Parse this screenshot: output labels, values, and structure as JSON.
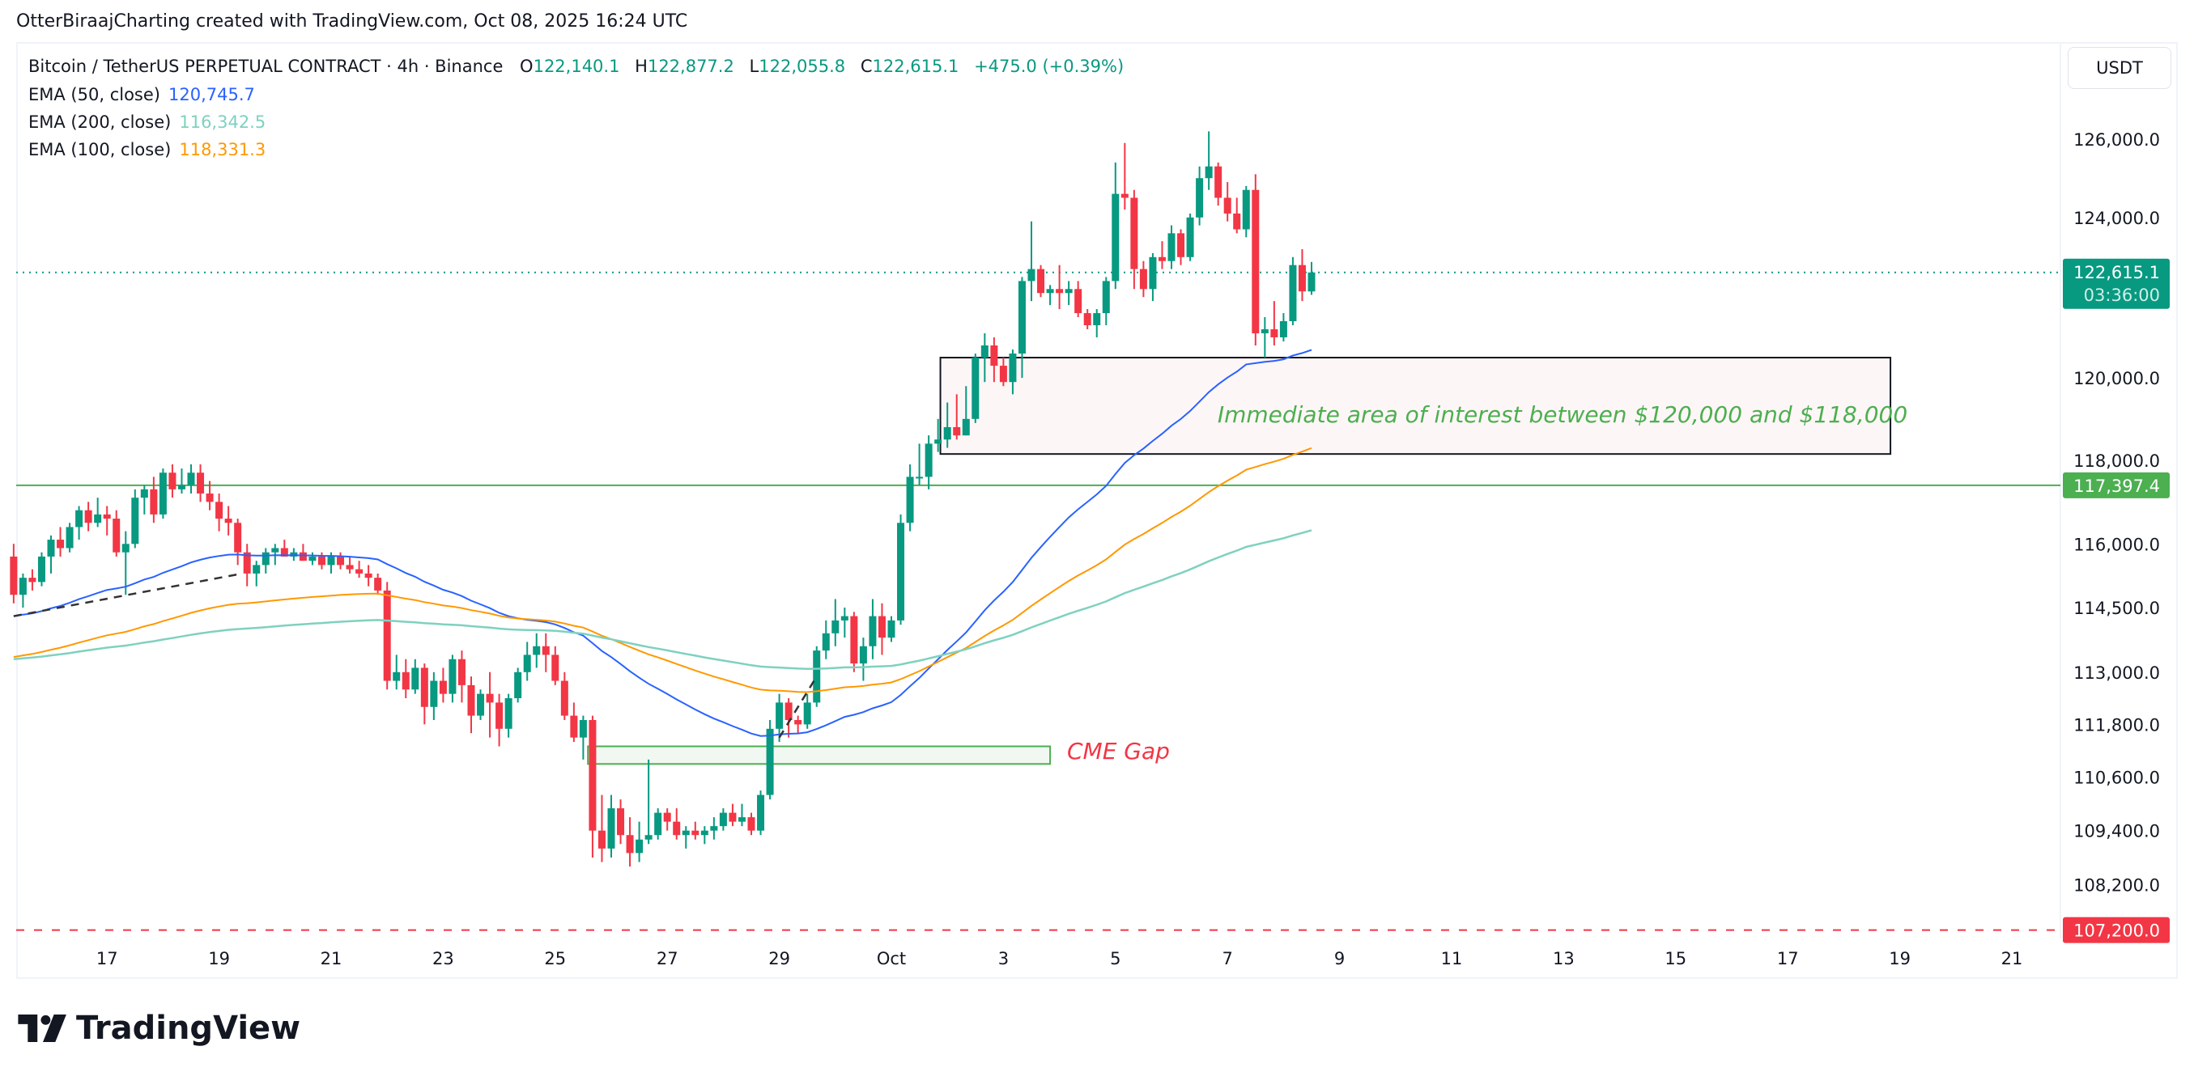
{
  "credit": "OtterBiraajCharting created with TradingView.com, Oct 08, 2025 16:24 UTC",
  "legend": {
    "symbol": "Bitcoin / TetherUS PERPETUAL CONTRACT · 4h · Binance",
    "o_label": "O",
    "o": "122,140.1",
    "h_label": "H",
    "h": "122,877.2",
    "l_label": "L",
    "l": "122,055.8",
    "c_label": "C",
    "c": "122,615.1",
    "change": "+475.0 (+0.39%)",
    "ema50_label": "EMA (50, close)",
    "ema50_value": "120,745.7",
    "ema200_label": "EMA (200, close)",
    "ema200_value": "116,342.5",
    "ema100_label": "EMA (100, close)",
    "ema100_value": "118,331.3"
  },
  "currency_button": "USDT",
  "logo_text": "TradingView",
  "colors": {
    "up": "#089981",
    "down": "#f23645",
    "ema50": "#2962ff",
    "ema100": "#ff9800",
    "ema200": "#7fd1bf",
    "support_line": "#4caf50",
    "target_line": "#f23645",
    "text_green": "#4caf50"
  },
  "chart_data": {
    "type": "candlestick",
    "title": "",
    "scale": "log",
    "grid": false,
    "ylim": [
      106900,
      126900
    ],
    "xlim": [
      "2025-09-15 06:00",
      "2025-10-22 12:00"
    ],
    "interval_hours": 4,
    "start": "2025-09-15 08:00",
    "x_ticks": [
      {
        "date": "2025-09-17",
        "label": "17"
      },
      {
        "date": "2025-09-19",
        "label": "19"
      },
      {
        "date": "2025-09-21",
        "label": "21"
      },
      {
        "date": "2025-09-23",
        "label": "23"
      },
      {
        "date": "2025-09-25",
        "label": "25"
      },
      {
        "date": "2025-09-27",
        "label": "27"
      },
      {
        "date": "2025-09-29",
        "label": "29"
      },
      {
        "date": "2025-10-01",
        "label": "Oct"
      },
      {
        "date": "2025-10-03",
        "label": "3"
      },
      {
        "date": "2025-10-05",
        "label": "5"
      },
      {
        "date": "2025-10-07",
        "label": "7"
      },
      {
        "date": "2025-10-09",
        "label": "9"
      },
      {
        "date": "2025-10-11",
        "label": "11"
      },
      {
        "date": "2025-10-13",
        "label": "13"
      },
      {
        "date": "2025-10-15",
        "label": "15"
      },
      {
        "date": "2025-10-17",
        "label": "17"
      },
      {
        "date": "2025-10-19",
        "label": "19"
      },
      {
        "date": "2025-10-21",
        "label": "21"
      }
    ],
    "y_ticks": [
      {
        "value": 126000,
        "label": "126,000.0"
      },
      {
        "value": 124000,
        "label": "124,000.0"
      },
      {
        "value": 120000,
        "label": "120,000.0"
      },
      {
        "value": 118000,
        "label": "118,000.0"
      },
      {
        "value": 116000,
        "label": "116,000.0"
      },
      {
        "value": 114500,
        "label": "114,500.0"
      },
      {
        "value": 113000,
        "label": "113,000.0"
      },
      {
        "value": 111800,
        "label": "111,800.0"
      },
      {
        "value": 110600,
        "label": "110,600.0"
      },
      {
        "value": 109400,
        "label": "109,400.0"
      },
      {
        "value": 108200,
        "label": "108,200.0"
      }
    ],
    "price_labels": [
      {
        "value": 122615.1,
        "label": "122,615.1",
        "sub": "03:36:00",
        "kind": "last"
      },
      {
        "value": 117397.4,
        "label": "117,397.4",
        "kind": "support"
      },
      {
        "value": 107200,
        "label": "107,200.0",
        "kind": "target"
      }
    ],
    "candles": [
      [
        115700,
        116000,
        114600,
        114800
      ],
      [
        114800,
        115300,
        114500,
        115200
      ],
      [
        115200,
        115400,
        114900,
        115100
      ],
      [
        115100,
        115800,
        115000,
        115700
      ],
      [
        115700,
        116200,
        115300,
        116100
      ],
      [
        116100,
        116400,
        115700,
        115900
      ],
      [
        115900,
        116500,
        115800,
        116400
      ],
      [
        116400,
        116900,
        116100,
        116800
      ],
      [
        116800,
        117000,
        116300,
        116500
      ],
      [
        116500,
        117100,
        116400,
        116700
      ],
      [
        116700,
        116900,
        116200,
        116600
      ],
      [
        116600,
        116800,
        115700,
        115800
      ],
      [
        115800,
        116300,
        114800,
        116000
      ],
      [
        116000,
        117300,
        115900,
        117100
      ],
      [
        117100,
        117400,
        116700,
        117300
      ],
      [
        117300,
        117600,
        116500,
        116700
      ],
      [
        116700,
        117800,
        116600,
        117700
      ],
      [
        117700,
        117900,
        117100,
        117300
      ],
      [
        117300,
        117800,
        117200,
        117400
      ],
      [
        117400,
        117900,
        117200,
        117700
      ],
      [
        117700,
        117900,
        117000,
        117200
      ],
      [
        117200,
        117500,
        116800,
        117000
      ],
      [
        117000,
        117200,
        116300,
        116600
      ],
      [
        116600,
        116900,
        116200,
        116500
      ],
      [
        116500,
        116600,
        115500,
        115800
      ],
      [
        115800,
        116000,
        115000,
        115300
      ],
      [
        115300,
        115600,
        115000,
        115500
      ],
      [
        115500,
        115900,
        115300,
        115800
      ],
      [
        115800,
        116000,
        115500,
        115900
      ],
      [
        115900,
        116100,
        115700,
        115700
      ],
      [
        115700,
        115900,
        115600,
        115800
      ],
      [
        115800,
        116000,
        115600,
        115600
      ],
      [
        115600,
        115800,
        115500,
        115700
      ],
      [
        115700,
        115800,
        115400,
        115500
      ],
      [
        115500,
        115800,
        115300,
        115700
      ],
      [
        115700,
        115800,
        115400,
        115500
      ],
      [
        115500,
        115700,
        115300,
        115400
      ],
      [
        115400,
        115600,
        115200,
        115300
      ],
      [
        115300,
        115500,
        115000,
        115200
      ],
      [
        115200,
        115300,
        114800,
        114900
      ],
      [
        114900,
        115100,
        112600,
        112800
      ],
      [
        112800,
        113400,
        112600,
        113000
      ],
      [
        113000,
        113300,
        112400,
        112600
      ],
      [
        112600,
        113300,
        112500,
        113100
      ],
      [
        113100,
        113200,
        111800,
        112200
      ],
      [
        112200,
        113000,
        111900,
        112800
      ],
      [
        112800,
        113100,
        112300,
        112500
      ],
      [
        112500,
        113400,
        112300,
        113300
      ],
      [
        113300,
        113500,
        112300,
        112700
      ],
      [
        112700,
        112900,
        111600,
        112000
      ],
      [
        112000,
        112600,
        111900,
        112500
      ],
      [
        112500,
        113000,
        111500,
        112300
      ],
      [
        112300,
        112500,
        111300,
        111700
      ],
      [
        111700,
        112500,
        111500,
        112400
      ],
      [
        112400,
        113100,
        112300,
        113000
      ],
      [
        113000,
        113700,
        112800,
        113400
      ],
      [
        113400,
        113900,
        113100,
        113600
      ],
      [
        113600,
        113900,
        113000,
        113400
      ],
      [
        113400,
        113600,
        112700,
        112800
      ],
      [
        112800,
        113000,
        111900,
        112000
      ],
      [
        112000,
        112300,
        111400,
        111500
      ],
      [
        111500,
        112000,
        111000,
        111900
      ],
      [
        111900,
        112000,
        108800,
        109400
      ],
      [
        109400,
        110200,
        108700,
        109000
      ],
      [
        109000,
        110200,
        108800,
        109900
      ],
      [
        109900,
        110100,
        109100,
        109300
      ],
      [
        109300,
        109700,
        108600,
        108900
      ],
      [
        108900,
        109600,
        108700,
        109200
      ],
      [
        109200,
        111000,
        109100,
        109300
      ],
      [
        109300,
        109900,
        109200,
        109800
      ],
      [
        109800,
        109900,
        109400,
        109600
      ],
      [
        109600,
        109900,
        109200,
        109300
      ],
      [
        109300,
        109500,
        109000,
        109400
      ],
      [
        109400,
        109600,
        109200,
        109300
      ],
      [
        109300,
        109500,
        109100,
        109400
      ],
      [
        109400,
        109700,
        109200,
        109500
      ],
      [
        109500,
        109900,
        109400,
        109800
      ],
      [
        109800,
        110000,
        109500,
        109600
      ],
      [
        109600,
        110000,
        109500,
        109700
      ],
      [
        109700,
        109800,
        109300,
        109400
      ],
      [
        109400,
        110300,
        109300,
        110200
      ],
      [
        110200,
        111900,
        110100,
        111700
      ],
      [
        111700,
        112500,
        111400,
        112300
      ],
      [
        112300,
        112400,
        111500,
        111900
      ],
      [
        111900,
        112000,
        111600,
        111800
      ],
      [
        111800,
        112500,
        111700,
        112300
      ],
      [
        112300,
        113600,
        112200,
        113500
      ],
      [
        113500,
        114200,
        113300,
        113900
      ],
      [
        113900,
        114700,
        113600,
        114200
      ],
      [
        114200,
        114500,
        113800,
        114300
      ],
      [
        114300,
        114400,
        113000,
        113200
      ],
      [
        113200,
        113800,
        112800,
        113600
      ],
      [
        113600,
        114700,
        113300,
        114300
      ],
      [
        114300,
        114600,
        113400,
        113800
      ],
      [
        113800,
        114300,
        113700,
        114200
      ],
      [
        114200,
        116700,
        114100,
        116500
      ],
      [
        116500,
        117900,
        116300,
        117600
      ],
      [
        117600,
        118400,
        117400,
        117600
      ],
      [
        117600,
        118600,
        117300,
        118400
      ],
      [
        118400,
        119000,
        118200,
        118500
      ],
      [
        118500,
        119400,
        118300,
        118800
      ],
      [
        118800,
        119600,
        118500,
        118600
      ],
      [
        118600,
        119800,
        118600,
        119000
      ],
      [
        119000,
        120600,
        118900,
        120500
      ],
      [
        120500,
        121100,
        119900,
        120800
      ],
      [
        120800,
        121000,
        119900,
        120300
      ],
      [
        120300,
        120500,
        119800,
        119900
      ],
      [
        119900,
        120700,
        119600,
        120600
      ],
      [
        120600,
        122500,
        120000,
        122400
      ],
      [
        122400,
        123900,
        121900,
        122700
      ],
      [
        122700,
        122800,
        122000,
        122100
      ],
      [
        122100,
        122300,
        121800,
        122200
      ],
      [
        122200,
        122800,
        121700,
        122100
      ],
      [
        122100,
        122400,
        121800,
        122200
      ],
      [
        122200,
        122400,
        121500,
        121600
      ],
      [
        121600,
        121700,
        121200,
        121300
      ],
      [
        121300,
        121700,
        121000,
        121600
      ],
      [
        121600,
        122500,
        121300,
        122400
      ],
      [
        122400,
        125400,
        122200,
        124600
      ],
      [
        124600,
        125900,
        124200,
        124500
      ],
      [
        124500,
        124700,
        122200,
        122700
      ],
      [
        122700,
        122900,
        122000,
        122200
      ],
      [
        122200,
        123100,
        121900,
        123000
      ],
      [
        123000,
        123400,
        122700,
        122900
      ],
      [
        122900,
        123800,
        122700,
        123600
      ],
      [
        123600,
        123700,
        122800,
        123000
      ],
      [
        123000,
        124100,
        122900,
        124000
      ],
      [
        124000,
        125300,
        123800,
        125000
      ],
      [
        125000,
        126200,
        124700,
        125300
      ],
      [
        125300,
        125400,
        124300,
        124500
      ],
      [
        124500,
        124900,
        123900,
        124100
      ],
      [
        124100,
        124500,
        123600,
        123700
      ],
      [
        123700,
        124800,
        123500,
        124700
      ],
      [
        124700,
        125100,
        120800,
        121100
      ],
      [
        121100,
        121500,
        120500,
        121200
      ],
      [
        121200,
        121900,
        120800,
        121000
      ],
      [
        121000,
        121600,
        120900,
        121400
      ],
      [
        121400,
        123000,
        121300,
        122800
      ],
      [
        122800,
        123200,
        121900,
        122140.1
      ],
      [
        122140.1,
        122877.2,
        122055.8,
        122615.1
      ]
    ],
    "ema": [
      {
        "name": "EMA (50, close)",
        "period": 50,
        "start_value": 114300,
        "color_key": "ema50"
      },
      {
        "name": "EMA (100, close)",
        "period": 100,
        "start_value": 113350,
        "color_key": "ema100"
      },
      {
        "name": "EMA (200, close)",
        "period": 200,
        "start_value": 113300,
        "color_key": "ema200"
      }
    ],
    "annotations": {
      "last_price": 122615.1,
      "support_level": 117397.4,
      "target_level": 107200,
      "interest_box": {
        "from": "2025-10-01 21:00",
        "to": "2025-10-18 20:00",
        "top": 120500,
        "bottom": 118150,
        "label": "Immediate area of interest between $120,000 and $118,000"
      },
      "cme_gap": {
        "from": "2025-09-25 14:00",
        "to": "2025-10-03 20:00",
        "top": 111300,
        "bottom": 110900,
        "label": "CME Gap"
      },
      "trend_lines": [
        {
          "from": "2025-09-15 08:00",
          "p1": 114300,
          "to": "2025-09-19 10:00",
          "p2": 115300
        },
        {
          "from": "2025-09-29 00:00",
          "p1": 111500,
          "to": "2025-09-29 16:00",
          "p2": 112900
        }
      ]
    }
  }
}
